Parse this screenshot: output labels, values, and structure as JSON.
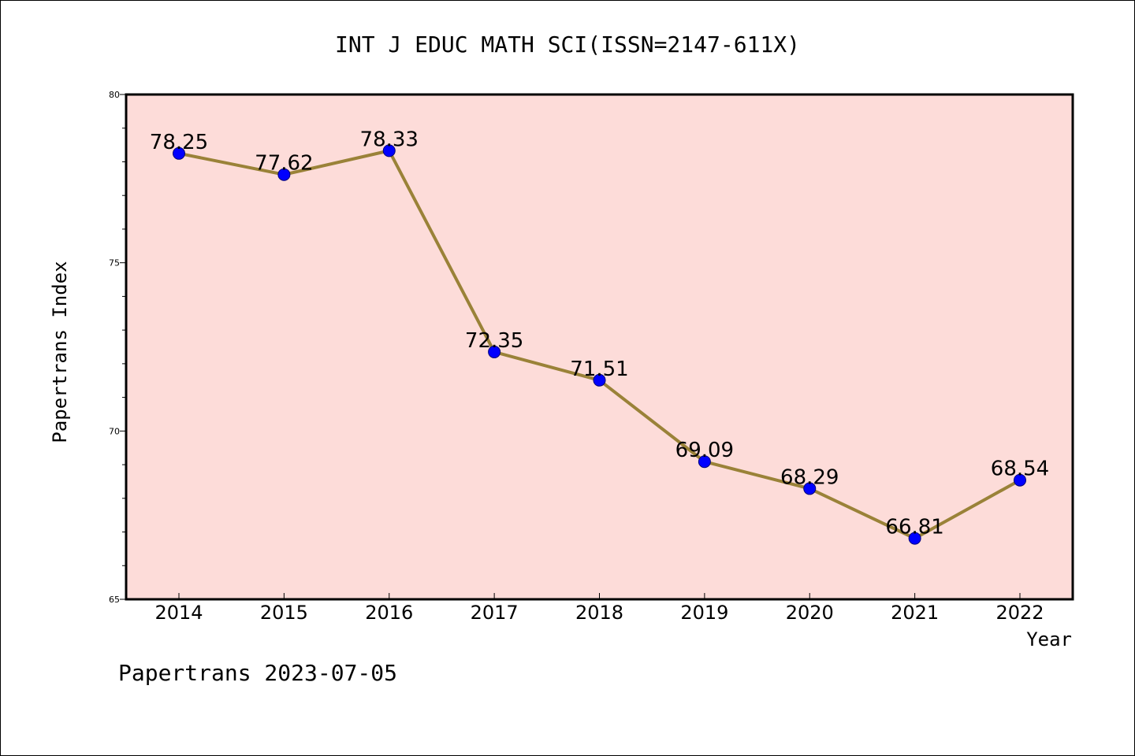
{
  "chart_data": {
    "type": "line",
    "title": "INT J EDUC MATH SCI(ISSN=2147-611X)",
    "xlabel": "Year",
    "ylabel": "Papertrans Index",
    "categories": [
      "2014",
      "2015",
      "2016",
      "2017",
      "2018",
      "2019",
      "2020",
      "2021",
      "2022"
    ],
    "values": [
      78.25,
      77.62,
      78.33,
      72.35,
      71.51,
      69.09,
      68.29,
      66.81,
      68.54
    ],
    "value_labels": [
      "78.25",
      "77.62",
      "78.33",
      "72.35",
      "71.51",
      "69.09",
      "68.29",
      "66.81",
      "68.54"
    ],
    "ylim": [
      65,
      80
    ],
    "yticks": [
      "65",
      "70",
      "75",
      "80"
    ],
    "grid": false,
    "colors": {
      "plot_background": "#fddcd9",
      "line": "#9a8238",
      "marker": "#0000ff",
      "marker_edge": "#00007a"
    }
  },
  "footer": {
    "text": "Papertrans 2023-07-05"
  }
}
